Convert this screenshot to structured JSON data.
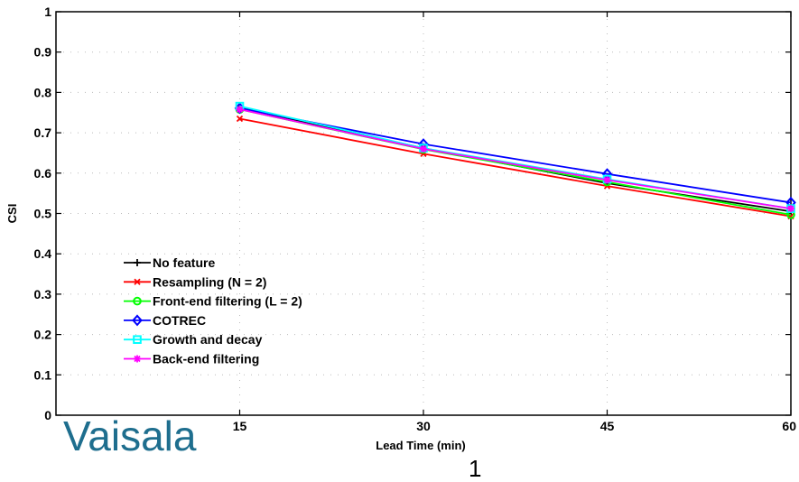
{
  "brand": {
    "logo_text": "Vaisala"
  },
  "page_number": "1",
  "colors": {
    "brand": "#1e6e8e",
    "background": "#ffffff"
  },
  "chart_data": {
    "type": "line",
    "title": "",
    "xlabel": "Lead Time (min)",
    "ylabel": "CSI",
    "xlim": [
      0,
      60
    ],
    "ylim": [
      0,
      1
    ],
    "x_ticks": [
      15,
      30,
      45,
      60
    ],
    "y_ticks": [
      0,
      0.1,
      0.2,
      0.3,
      0.4,
      0.5,
      0.6,
      0.7,
      0.8,
      0.9,
      1
    ],
    "y_tick_labels": [
      "0",
      "0.1",
      "0.2",
      "0.3",
      "0.4",
      "0.5",
      "0.6",
      "0.7",
      "0.8",
      "0.9",
      "1"
    ],
    "grid": "dotted",
    "legend_position": "lower-left",
    "x": [
      15,
      30,
      45,
      60
    ],
    "series": [
      {
        "name": "No feature",
        "color": "#000000",
        "marker": "plus",
        "values": [
          0.762,
          0.662,
          0.575,
          0.505
        ]
      },
      {
        "name": "Resampling (N = 2)",
        "color": "#ff0000",
        "marker": "x",
        "values": [
          0.735,
          0.648,
          0.568,
          0.493
        ]
      },
      {
        "name": "Front-end filtering (L = 2)",
        "color": "#00ff00",
        "marker": "circle",
        "values": [
          0.758,
          0.659,
          0.578,
          0.497
        ]
      },
      {
        "name": "COTREC",
        "color": "#0000ff",
        "marker": "diamond",
        "values": [
          0.761,
          0.672,
          0.598,
          0.527
        ]
      },
      {
        "name": "Growth and decay",
        "color": "#00ffff",
        "marker": "square",
        "values": [
          0.766,
          0.662,
          0.585,
          0.512
        ]
      },
      {
        "name": "Back-end filtering",
        "color": "#ff00ff",
        "marker": "star",
        "values": [
          0.758,
          0.66,
          0.583,
          0.512
        ]
      }
    ]
  }
}
